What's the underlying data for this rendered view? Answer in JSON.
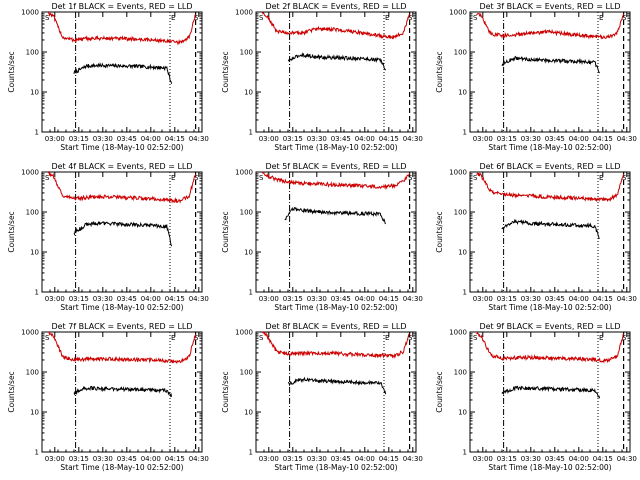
{
  "figure": {
    "background": "#ffffff",
    "colors": {
      "events": "#000000",
      "lld": "#cc0000",
      "axes": "#000000"
    }
  },
  "chart_data": [
    {
      "type": "line",
      "title": "Det 1f BLACK = Events, RED = LLD",
      "xlabel": "Start Time (18-May-10 02:52:00)",
      "ylabel": "Counts/sec",
      "y_scale": "log",
      "ylim": [
        1,
        1000
      ],
      "xlim": [
        "02:52",
        "04:32"
      ],
      "x_ticks": [
        "03:00",
        "03:15",
        "03:30",
        "03:45",
        "04:00",
        "04:15",
        "04:30"
      ],
      "y_ticks": [
        "1",
        "10",
        "100",
        "1000"
      ],
      "markers": [
        "S",
        "E",
        "S"
      ],
      "series": [
        {
          "color": "#000000",
          "x": [
            "03:12",
            "03:20",
            "03:30",
            "03:40",
            "03:50",
            "04:00",
            "04:10",
            "04:13"
          ],
          "values": [
            30,
            45,
            46,
            45,
            44,
            42,
            40,
            16
          ]
        },
        {
          "color": "#cc0000",
          "x": [
            "02:56",
            "02:59",
            "03:05",
            "03:12",
            "03:20",
            "03:30",
            "03:40",
            "03:50",
            "04:00",
            "04:10",
            "04:18",
            "04:24",
            "04:28"
          ],
          "values": [
            950,
            800,
            230,
            200,
            215,
            220,
            215,
            210,
            200,
            190,
            170,
            230,
            900
          ]
        }
      ]
    },
    {
      "type": "line",
      "title": "Det 2f BLACK = Events, RED = LLD",
      "xlabel": "Start Time (18-May-10 02:52:00)",
      "ylabel": "Counts/sec",
      "y_scale": "log",
      "ylim": [
        1,
        1000
      ],
      "xlim": [
        "02:52",
        "04:32"
      ],
      "x_ticks": [
        "03:00",
        "03:15",
        "03:30",
        "03:45",
        "04:00",
        "04:15",
        "04:30"
      ],
      "y_ticks": [
        "1",
        "10",
        "100",
        "1000"
      ],
      "markers": [
        "S",
        "E",
        "S"
      ],
      "series": [
        {
          "color": "#000000",
          "x": [
            "03:12",
            "03:20",
            "03:30",
            "03:40",
            "03:50",
            "04:00",
            "04:10",
            "04:13"
          ],
          "values": [
            60,
            85,
            75,
            72,
            70,
            68,
            62,
            35
          ]
        },
        {
          "color": "#cc0000",
          "x": [
            "02:56",
            "02:59",
            "03:05",
            "03:12",
            "03:20",
            "03:30",
            "03:40",
            "03:50",
            "04:00",
            "04:10",
            "04:18",
            "04:24",
            "04:28"
          ],
          "values": [
            950,
            800,
            330,
            300,
            290,
            380,
            370,
            330,
            290,
            250,
            240,
            300,
            900
          ]
        }
      ]
    },
    {
      "type": "line",
      "title": "Det 3f BLACK = Events, RED = LLD",
      "xlabel": "Start Time (18-May-10 02:52:00)",
      "ylabel": "Counts/sec",
      "y_scale": "log",
      "ylim": [
        1,
        1000
      ],
      "xlim": [
        "02:52",
        "04:32"
      ],
      "x_ticks": [
        "03:00",
        "03:15",
        "03:30",
        "03:45",
        "04:00",
        "04:15",
        "04:30"
      ],
      "y_ticks": [
        "1",
        "10",
        "100",
        "1000"
      ],
      "markers": [
        "S",
        "E",
        "S"
      ],
      "series": [
        {
          "color": "#000000",
          "x": [
            "03:12",
            "03:20",
            "03:30",
            "03:40",
            "03:50",
            "04:00",
            "04:10",
            "04:13"
          ],
          "values": [
            50,
            70,
            65,
            62,
            60,
            58,
            55,
            30
          ]
        },
        {
          "color": "#cc0000",
          "x": [
            "02:56",
            "02:59",
            "03:05",
            "03:12",
            "03:20",
            "03:30",
            "03:40",
            "03:50",
            "04:00",
            "04:10",
            "04:18",
            "04:24",
            "04:28"
          ],
          "values": [
            950,
            800,
            280,
            260,
            265,
            300,
            320,
            290,
            260,
            240,
            230,
            300,
            900
          ]
        }
      ]
    },
    {
      "type": "line",
      "title": "Det 4f BLACK = Events, RED = LLD",
      "xlabel": "Start Time (18-May-10 02:52:00)",
      "ylabel": "Counts/sec",
      "y_scale": "log",
      "ylim": [
        1,
        1000
      ],
      "xlim": [
        "02:52",
        "04:32"
      ],
      "x_ticks": [
        "03:00",
        "03:15",
        "03:30",
        "03:45",
        "04:00",
        "04:15",
        "04:30"
      ],
      "y_ticks": [
        "1",
        "10",
        "100",
        "1000"
      ],
      "markers": [
        "S",
        "E",
        "S"
      ],
      "series": [
        {
          "color": "#000000",
          "x": [
            "03:12",
            "03:20",
            "03:30",
            "03:40",
            "03:50",
            "04:00",
            "04:10",
            "04:13"
          ],
          "values": [
            30,
            50,
            52,
            50,
            48,
            46,
            44,
            14
          ]
        },
        {
          "color": "#cc0000",
          "x": [
            "02:56",
            "02:59",
            "03:05",
            "03:12",
            "03:20",
            "03:30",
            "03:40",
            "03:50",
            "04:00",
            "04:10",
            "04:18",
            "04:24",
            "04:28"
          ],
          "values": [
            950,
            800,
            250,
            220,
            230,
            240,
            235,
            225,
            215,
            200,
            190,
            250,
            900
          ]
        }
      ]
    },
    {
      "type": "line",
      "title": "Det 5f BLACK = Events, RED = LLD",
      "xlabel": "Start Time (18-May-10 02:52:00)",
      "ylabel": "Counts/sec",
      "y_scale": "log",
      "ylim": [
        1,
        1000
      ],
      "xlim": [
        "02:52",
        "04:32"
      ],
      "x_ticks": [
        "03:00",
        "03:15",
        "03:30",
        "03:45",
        "04:00",
        "04:15",
        "04:30"
      ],
      "y_ticks": [
        "1",
        "10",
        "100",
        "1000"
      ],
      "markers": [
        "S",
        "S"
      ],
      "series": [
        {
          "color": "#000000",
          "x": [
            "03:10",
            "03:15",
            "03:25",
            "03:35",
            "03:45",
            "03:55",
            "04:05",
            "04:10",
            "04:13"
          ],
          "values": [
            60,
            120,
            105,
            100,
            95,
            92,
            90,
            88,
            50
          ]
        },
        {
          "color": "#cc0000",
          "x": [
            "02:56",
            "02:59",
            "03:05",
            "03:12",
            "03:20",
            "03:30",
            "03:40",
            "03:50",
            "04:00",
            "04:10",
            "04:18",
            "04:24",
            "04:28"
          ],
          "values": [
            950,
            800,
            650,
            550,
            520,
            510,
            480,
            460,
            440,
            430,
            450,
            600,
            950
          ]
        }
      ]
    },
    {
      "type": "line",
      "title": "Det 6f BLACK = Events, RED = LLD",
      "xlabel": "Start Time (18-May-10 02:52:00)",
      "ylabel": "Counts/sec",
      "y_scale": "log",
      "ylim": [
        1,
        1000
      ],
      "xlim": [
        "02:52",
        "04:32"
      ],
      "x_ticks": [
        "03:00",
        "03:15",
        "03:30",
        "03:45",
        "04:00",
        "04:15",
        "04:30"
      ],
      "y_ticks": [
        "1",
        "10",
        "100",
        "1000"
      ],
      "markers": [
        "S",
        "E",
        "S"
      ],
      "series": [
        {
          "color": "#000000",
          "x": [
            "03:12",
            "03:20",
            "03:30",
            "03:40",
            "03:50",
            "04:00",
            "04:10",
            "04:13"
          ],
          "values": [
            40,
            58,
            52,
            50,
            48,
            46,
            44,
            22
          ]
        },
        {
          "color": "#cc0000",
          "x": [
            "02:56",
            "02:59",
            "03:05",
            "03:12",
            "03:20",
            "03:30",
            "03:40",
            "03:50",
            "04:00",
            "04:10",
            "04:18",
            "04:24",
            "04:28"
          ],
          "values": [
            950,
            800,
            320,
            280,
            260,
            250,
            240,
            230,
            220,
            210,
            200,
            260,
            900
          ]
        }
      ]
    },
    {
      "type": "line",
      "title": "Det 7f BLACK = Events, RED = LLD",
      "xlabel": "Start Time (18-May-10 02:52:00)",
      "ylabel": "Counts/sec",
      "y_scale": "log",
      "ylim": [
        1,
        1000
      ],
      "xlim": [
        "02:52",
        "04:32"
      ],
      "x_ticks": [
        "03:00",
        "03:15",
        "03:30",
        "03:45",
        "04:00",
        "04:15",
        "04:30"
      ],
      "y_ticks": [
        "1",
        "10",
        "100",
        "1000"
      ],
      "markers": [
        "S",
        "E",
        "S"
      ],
      "series": [
        {
          "color": "#000000",
          "x": [
            "03:12",
            "03:20",
            "03:30",
            "03:40",
            "03:50",
            "04:00",
            "04:10",
            "04:13"
          ],
          "values": [
            30,
            40,
            38,
            37,
            36,
            35,
            34,
            24
          ]
        },
        {
          "color": "#cc0000",
          "x": [
            "02:56",
            "02:59",
            "03:05",
            "03:12",
            "03:20",
            "03:30",
            "03:40",
            "03:50",
            "04:00",
            "04:10",
            "04:18",
            "04:24",
            "04:28"
          ],
          "values": [
            950,
            800,
            240,
            200,
            210,
            215,
            210,
            205,
            200,
            190,
            180,
            240,
            900
          ]
        }
      ]
    },
    {
      "type": "line",
      "title": "Det 8f BLACK = Events, RED = LLD",
      "xlabel": "Start Time (18-May-10 02:52:00)",
      "ylabel": "Counts/sec",
      "y_scale": "log",
      "ylim": [
        1,
        1000
      ],
      "xlim": [
        "02:52",
        "04:32"
      ],
      "x_ticks": [
        "03:00",
        "03:15",
        "03:30",
        "03:45",
        "04:00",
        "04:15",
        "04:30"
      ],
      "y_ticks": [
        "1",
        "10",
        "100",
        "1000"
      ],
      "markers": [
        "S",
        "E",
        "S"
      ],
      "series": [
        {
          "color": "#000000",
          "x": [
            "03:12",
            "03:20",
            "03:30",
            "03:40",
            "03:50",
            "04:00",
            "04:10",
            "04:13"
          ],
          "values": [
            50,
            65,
            60,
            58,
            56,
            54,
            52,
            28
          ]
        },
        {
          "color": "#cc0000",
          "x": [
            "02:56",
            "02:59",
            "03:05",
            "03:12",
            "03:20",
            "03:30",
            "03:40",
            "03:50",
            "04:00",
            "04:10",
            "04:18",
            "04:24",
            "04:28"
          ],
          "values": [
            950,
            800,
            320,
            280,
            290,
            300,
            290,
            280,
            270,
            260,
            250,
            320,
            900
          ]
        }
      ]
    },
    {
      "type": "line",
      "title": "Det 9f BLACK = Events, RED = LLD",
      "xlabel": "Start Time (18-May-10 02:52:00)",
      "ylabel": "Counts/sec",
      "y_scale": "log",
      "ylim": [
        1,
        1000
      ],
      "xlim": [
        "02:52",
        "04:32"
      ],
      "x_ticks": [
        "03:00",
        "03:15",
        "03:30",
        "03:45",
        "04:00",
        "04:15",
        "04:30"
      ],
      "y_ticks": [
        "1",
        "10",
        "100",
        "1000"
      ],
      "markers": [
        "S",
        "E",
        "S"
      ],
      "series": [
        {
          "color": "#000000",
          "x": [
            "03:12",
            "03:20",
            "03:30",
            "03:40",
            "03:50",
            "04:00",
            "04:10",
            "04:13"
          ],
          "values": [
            30,
            40,
            39,
            38,
            37,
            36,
            35,
            22
          ]
        },
        {
          "color": "#cc0000",
          "x": [
            "02:56",
            "02:59",
            "03:05",
            "03:12",
            "03:20",
            "03:30",
            "03:40",
            "03:50",
            "04:00",
            "04:10",
            "04:18",
            "04:24",
            "04:28"
          ],
          "values": [
            950,
            800,
            260,
            220,
            225,
            230,
            225,
            220,
            210,
            200,
            190,
            250,
            900
          ]
        }
      ]
    }
  ]
}
